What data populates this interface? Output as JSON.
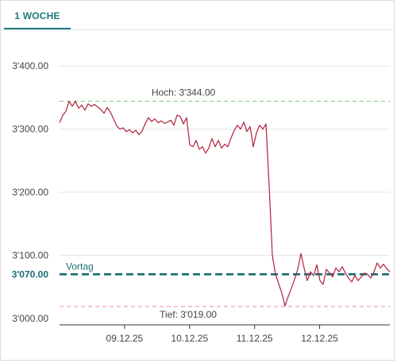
{
  "tabs": [
    {
      "label": "1 WOCHE",
      "active": true
    }
  ],
  "colors": {
    "accent": "#1a7a82",
    "line": "#b0213d",
    "high_line": "#8fd18f",
    "low_line": "#f2a0a8",
    "vortag_line": "#176c74"
  },
  "chart_data": {
    "type": "line",
    "ylim": [
      3000,
      3400
    ],
    "yticks": [
      {
        "value": 3400,
        "label": "3'400.00"
      },
      {
        "value": 3300,
        "label": "3'300.00"
      },
      {
        "value": 3200,
        "label": "3'200.00"
      },
      {
        "value": 3100,
        "label": "3'100.00"
      },
      {
        "value": 3000,
        "label": "3'000.00"
      }
    ],
    "xlim": [
      "08.12.25",
      "12.12.25 close"
    ],
    "xticks": [
      "09.12.25",
      "10.12.25",
      "11.12.25",
      "12.12.25"
    ],
    "highlight_tick": {
      "value": 3070,
      "label": "3'070.00"
    },
    "reference_lines": [
      {
        "kind": "high",
        "value": 3344,
        "label": "Hoch: 3'344.00"
      },
      {
        "kind": "vortag",
        "value": 3070,
        "label": "Vortag"
      },
      {
        "kind": "low",
        "value": 3019,
        "label": "Tief: 3'019.00"
      }
    ],
    "grid": "horizontal",
    "series_values": [
      3310,
      3322,
      3328,
      3344,
      3336,
      3344,
      3333,
      3338,
      3330,
      3340,
      3336,
      3339,
      3335,
      3331,
      3325,
      3334,
      3327,
      3316,
      3305,
      3300,
      3302,
      3296,
      3299,
      3294,
      3298,
      3291,
      3297,
      3309,
      3318,
      3312,
      3316,
      3310,
      3313,
      3309,
      3311,
      3314,
      3306,
      3322,
      3320,
      3308,
      3318,
      3275,
      3272,
      3282,
      3268,
      3272,
      3262,
      3270,
      3285,
      3272,
      3282,
      3270,
      3276,
      3272,
      3286,
      3298,
      3306,
      3300,
      3311,
      3296,
      3304,
      3272,
      3294,
      3306,
      3300,
      3308,
      3210,
      3100,
      3070,
      3055,
      3040,
      3020,
      3035,
      3048,
      3062,
      3078,
      3103,
      3080,
      3060,
      3074,
      3068,
      3085,
      3060,
      3054,
      3078,
      3072,
      3066,
      3080,
      3074,
      3082,
      3072,
      3064,
      3058,
      3068,
      3060,
      3066,
      3072,
      3070,
      3064,
      3074,
      3088,
      3080,
      3086,
      3079,
      3074
    ]
  }
}
